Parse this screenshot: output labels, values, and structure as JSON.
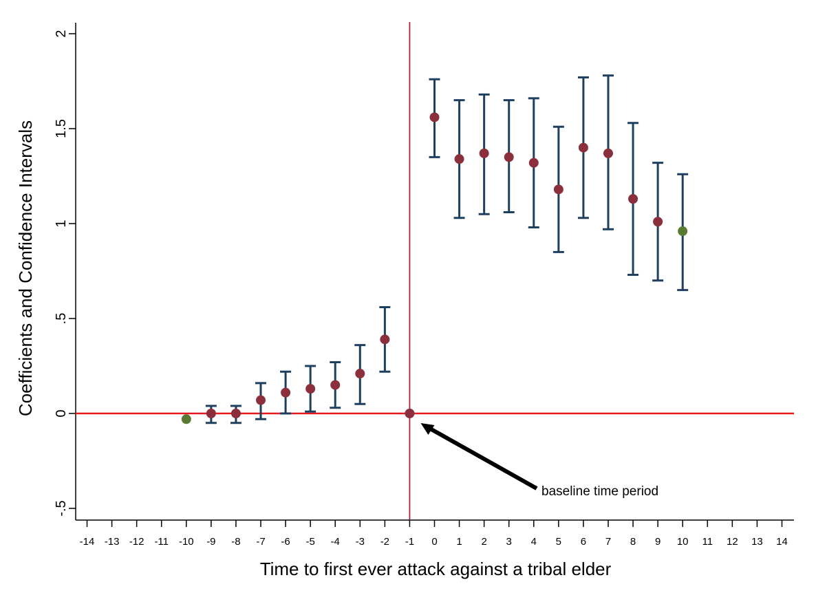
{
  "chart_data": {
    "type": "scatter",
    "subtype": "coefficient plot with confidence intervals",
    "title": "",
    "xlabel": "Time to first ever attack against a tribal elder",
    "ylabel": "Coefficients and Confidence Intervals",
    "xlim": [
      -14,
      14
    ],
    "ylim": [
      -0.5,
      2
    ],
    "x_ticks": [
      "-14",
      "-13",
      "-12",
      "-11",
      "-10",
      "-9",
      "-8",
      "-7",
      "-6",
      "-5",
      "-4",
      "-3",
      "-2",
      "-1",
      "0",
      "1",
      "2",
      "3",
      "4",
      "5",
      "6",
      "7",
      "8",
      "9",
      "10",
      "11",
      "12",
      "13",
      "14"
    ],
    "y_ticks": [
      {
        "value": -0.5,
        "label": "-.5"
      },
      {
        "value": 0,
        "label": "0"
      },
      {
        "value": 0.5,
        "label": ".5"
      },
      {
        "value": 1,
        "label": "1"
      },
      {
        "value": 1.5,
        "label": "1.5"
      },
      {
        "value": 2,
        "label": "2"
      }
    ],
    "reference_lines": {
      "horizontal_y": 0,
      "vertical_x": -1
    },
    "annotation": {
      "text": "baseline time period",
      "points_to": {
        "x": -1,
        "y": 0
      }
    },
    "colors": {
      "point": "#8B2F3C",
      "endpoint": "#5A7A32",
      "ci": "#1F3F5F",
      "hline": "#E8191E",
      "vline": "#B01E3A",
      "arrow": "#000000"
    },
    "points": [
      {
        "x": -10,
        "y": -0.03,
        "ci": null,
        "endpoint": true
      },
      {
        "x": -9,
        "y": 0.0,
        "ci": [
          -0.05,
          0.04
        ],
        "endpoint": false
      },
      {
        "x": -8,
        "y": 0.0,
        "ci": [
          -0.05,
          0.04
        ],
        "endpoint": false
      },
      {
        "x": -7,
        "y": 0.07,
        "ci": [
          -0.03,
          0.16
        ],
        "endpoint": false
      },
      {
        "x": -6,
        "y": 0.11,
        "ci": [
          0.0,
          0.22
        ],
        "endpoint": false
      },
      {
        "x": -5,
        "y": 0.13,
        "ci": [
          0.01,
          0.25
        ],
        "endpoint": false
      },
      {
        "x": -4,
        "y": 0.15,
        "ci": [
          0.03,
          0.27
        ],
        "endpoint": false
      },
      {
        "x": -3,
        "y": 0.21,
        "ci": [
          0.05,
          0.36
        ],
        "endpoint": false
      },
      {
        "x": -2,
        "y": 0.39,
        "ci": [
          0.22,
          0.56
        ],
        "endpoint": false
      },
      {
        "x": -1,
        "y": 0.0,
        "ci": null,
        "endpoint": false
      },
      {
        "x": 0,
        "y": 1.56,
        "ci": [
          1.35,
          1.76
        ],
        "endpoint": false
      },
      {
        "x": 1,
        "y": 1.34,
        "ci": [
          1.03,
          1.65
        ],
        "endpoint": false
      },
      {
        "x": 2,
        "y": 1.37,
        "ci": [
          1.05,
          1.68
        ],
        "endpoint": false
      },
      {
        "x": 3,
        "y": 1.35,
        "ci": [
          1.06,
          1.65
        ],
        "endpoint": false
      },
      {
        "x": 4,
        "y": 1.32,
        "ci": [
          0.98,
          1.66
        ],
        "endpoint": false
      },
      {
        "x": 5,
        "y": 1.18,
        "ci": [
          0.85,
          1.51
        ],
        "endpoint": false
      },
      {
        "x": 6,
        "y": 1.4,
        "ci": [
          1.03,
          1.77
        ],
        "endpoint": false
      },
      {
        "x": 7,
        "y": 1.37,
        "ci": [
          0.97,
          1.78
        ],
        "endpoint": false
      },
      {
        "x": 8,
        "y": 1.13,
        "ci": [
          0.73,
          1.53
        ],
        "endpoint": false
      },
      {
        "x": 9,
        "y": 1.01,
        "ci": [
          0.7,
          1.32
        ],
        "endpoint": false
      },
      {
        "x": 10,
        "y": 0.96,
        "ci": [
          0.65,
          1.26
        ],
        "endpoint": true
      }
    ]
  }
}
